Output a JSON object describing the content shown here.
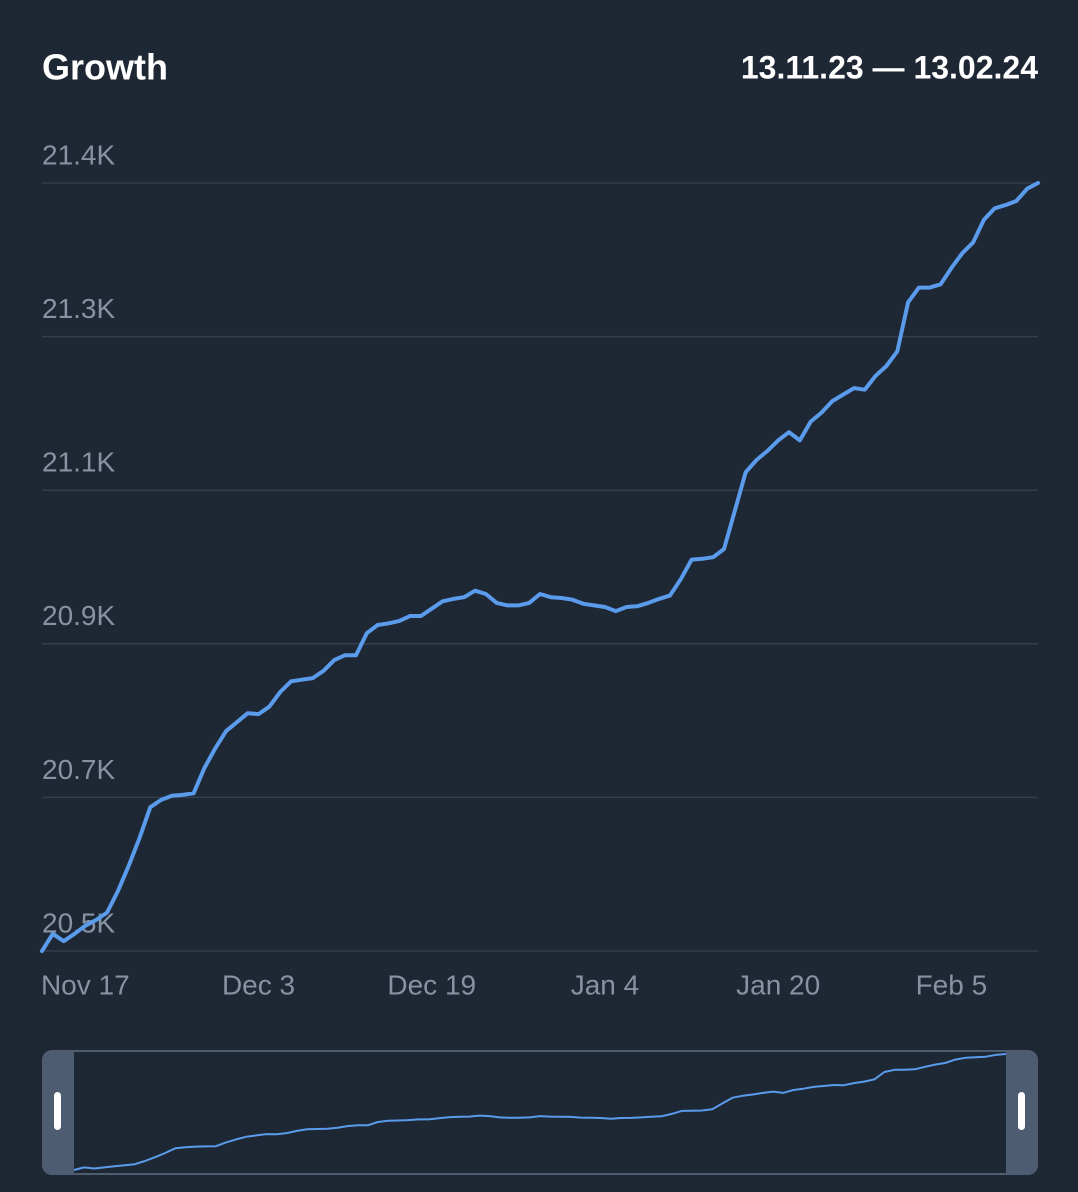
{
  "chart_data": {
    "type": "line",
    "title": "Growth",
    "subtitle": "13.11.23 — 13.02.24",
    "categories": [
      null,
      null,
      null,
      null,
      "Nov 17",
      null,
      null,
      null,
      null,
      null,
      null,
      null,
      null,
      null,
      null,
      null,
      null,
      null,
      null,
      null,
      "Dec 3",
      null,
      null,
      null,
      null,
      null,
      null,
      null,
      null,
      null,
      null,
      null,
      null,
      null,
      null,
      null,
      "Dec 19",
      null,
      null,
      null,
      null,
      null,
      null,
      null,
      null,
      null,
      null,
      null,
      null,
      null,
      null,
      null,
      "Jan 4",
      null,
      null,
      null,
      null,
      null,
      null,
      null,
      null,
      null,
      null,
      null,
      null,
      null,
      null,
      null,
      "Jan 20",
      null,
      null,
      null,
      null,
      null,
      null,
      null,
      null,
      null,
      null,
      null,
      null,
      null,
      null,
      null,
      "Feb 5",
      null,
      null,
      null,
      null,
      null,
      null,
      null,
      null
    ],
    "values": [
      20500,
      20521,
      20512,
      20521,
      20531,
      20538,
      20547,
      20573,
      20604,
      20638,
      20676,
      20685,
      20690,
      20691,
      20693,
      20724,
      20748,
      20769,
      20780,
      20791,
      20790,
      20799,
      20817,
      20830,
      20832,
      20834,
      20843,
      20856,
      20862,
      20862,
      20889,
      20899,
      20901,
      20904,
      20910,
      20910,
      20919,
      20928,
      20931,
      20933,
      20941,
      20937,
      20926,
      20923,
      20923,
      20926,
      20937,
      20933,
      20932,
      20930,
      20925,
      20923,
      20921,
      20916,
      20921,
      20922,
      20926,
      20931,
      20935,
      20955,
      20979,
      20980,
      20982,
      20992,
      21039,
      21086,
      21101,
      21112,
      21125,
      21135,
      21125,
      21148,
      21159,
      21173,
      21181,
      21189,
      21187,
      21204,
      21216,
      21234,
      21294,
      21312,
      21312,
      21316,
      21336,
      21354,
      21367,
      21395,
      21409,
      21413,
      21418,
      21433,
      21440
    ],
    "color": "#5a9bec",
    "ylim": [
      20500,
      21440
    ],
    "yticks": [
      {
        "value": 20500,
        "label": "20.5K"
      },
      {
        "value": 20688,
        "label": "20.7K"
      },
      {
        "value": 20876,
        "label": "20.9K"
      },
      {
        "value": 21064,
        "label": "21.1K"
      },
      {
        "value": 21252,
        "label": "21.3K"
      },
      {
        "value": 21440,
        "label": "21.4K"
      }
    ],
    "grid": true
  }
}
